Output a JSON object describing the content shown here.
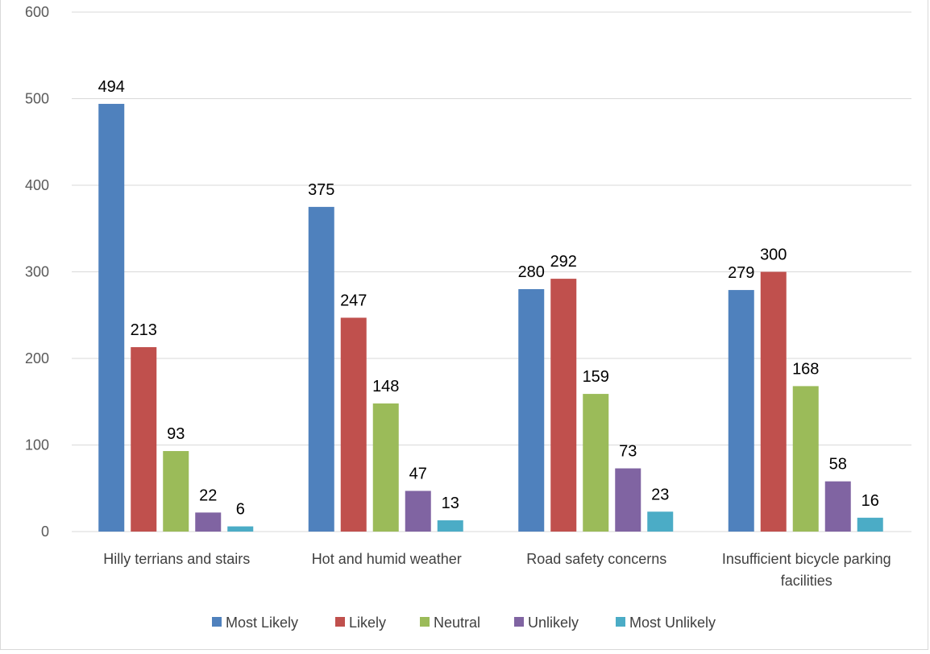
{
  "chart_data": {
    "type": "bar",
    "title": "",
    "xlabel": "",
    "ylabel": "",
    "ylim": [
      0,
      600
    ],
    "yticks": [
      0,
      100,
      200,
      300,
      400,
      500,
      600
    ],
    "grid": true,
    "legend_position": "bottom",
    "categories": [
      [
        "Hilly terrians and stairs"
      ],
      [
        "Hot and humid weather"
      ],
      [
        "Road safety concerns"
      ],
      [
        "Insufficient bicycle parking",
        "facilities"
      ]
    ],
    "series": [
      {
        "name": "Most Likely",
        "color": "#4f81bd",
        "values": [
          494,
          375,
          280,
          279
        ]
      },
      {
        "name": "Likely",
        "color": "#c0504d",
        "values": [
          213,
          247,
          292,
          300
        ]
      },
      {
        "name": "Neutral",
        "color": "#9bbb59",
        "values": [
          93,
          148,
          159,
          168
        ]
      },
      {
        "name": "Unlikely",
        "color": "#8064a2",
        "values": [
          22,
          47,
          73,
          58
        ]
      },
      {
        "name": "Most Unlikely",
        "color": "#4bacc6",
        "values": [
          6,
          13,
          23,
          16
        ]
      }
    ]
  }
}
